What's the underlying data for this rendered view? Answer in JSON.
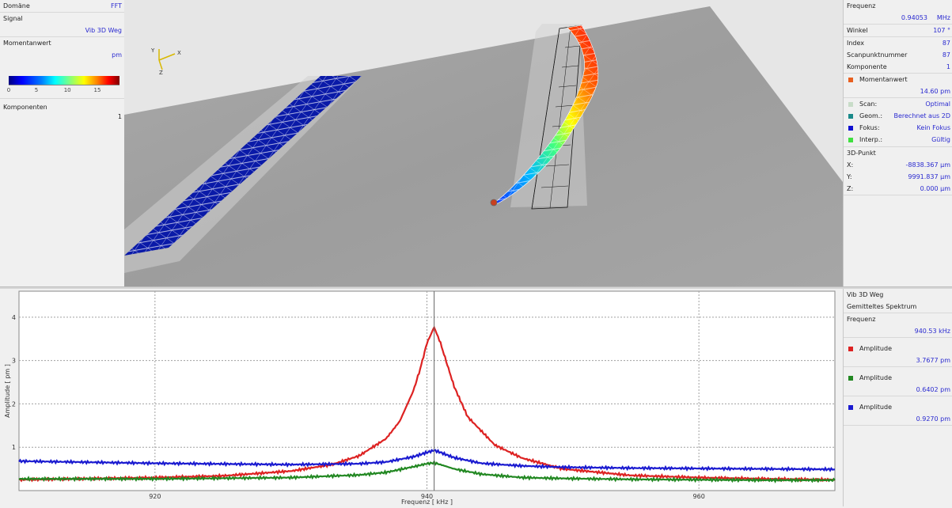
{
  "left_panel": {
    "domain_label": "Domäne",
    "domain_value": "FFT",
    "signal_label": "Signal",
    "signal_value": "Vib 3D Weg",
    "momentanwert_label": "Momentanwert",
    "unit": "pm",
    "colorbar_ticks": [
      "0",
      "5",
      "10",
      "15"
    ],
    "komponenten_label": "Komponenten",
    "komponenten_value": "1"
  },
  "axis_gizmo": {
    "x": "X",
    "y": "Y",
    "z": "Z"
  },
  "right_panel": {
    "frequenz_label": "Frequenz",
    "frequenz_value": "0.94053",
    "frequenz_unit": "MHz",
    "winkel_label": "Winkel",
    "winkel_value": "107 °",
    "index_label": "Index",
    "index_value": "87",
    "scanpunkt_label": "Scanpunktnummer",
    "scanpunkt_value": "87",
    "komponente_label": "Komponente",
    "komponente_value": "1",
    "momentanwert_label": "Momentanwert",
    "momentanwert_value": "14.60 pm",
    "status": [
      {
        "label": "Scan:",
        "value": "Optimal",
        "color": "#c8dcc8"
      },
      {
        "label": "Geom.:",
        "value": "Berechnet aus 2D",
        "color": "#1a8a8a"
      },
      {
        "label": "Fokus:",
        "value": "Kein Fokus",
        "color": "#1010d0"
      },
      {
        "label": "Interp.:",
        "value": "Gültig",
        "color": "#40e040"
      }
    ],
    "point_label": "3D-Punkt",
    "coords": [
      {
        "label": "X:",
        "value": "-8838.367 µm"
      },
      {
        "label": "Y:",
        "value": "9991.837 µm"
      },
      {
        "label": "Z:",
        "value": "0.000 µm"
      }
    ]
  },
  "legend_panel": {
    "signal": "Vib 3D Weg",
    "mode": "Gemitteltes Spektrum",
    "frequenz_label": "Frequenz",
    "frequenz_value": "940.53 kHz",
    "amplitudes": [
      {
        "label": "Amplitude",
        "value": "3.7677 pm",
        "color": "#dd2222"
      },
      {
        "label": "Amplitude",
        "value": "0.6402 pm",
        "color": "#228822"
      },
      {
        "label": "Amplitude",
        "value": "0.9270 pm",
        "color": "#1a1ad0"
      }
    ]
  },
  "chart_data": {
    "type": "line",
    "xlabel": "Frequenz [ kHz ]",
    "ylabel": "Amplitude [ pm ]",
    "xlim": [
      910,
      970
    ],
    "ylim": [
      0,
      4.6
    ],
    "x_ticks": [
      920,
      940,
      960
    ],
    "y_ticks": [
      1,
      2,
      3,
      4
    ],
    "grid": true,
    "cursor_x": 940.53,
    "series": [
      {
        "color": "#dd2222",
        "x": [
          910,
          920,
          925,
          930,
          933,
          935,
          937,
          938,
          939,
          939.5,
          940,
          940.53,
          941,
          941.5,
          942,
          943,
          945,
          947,
          950,
          955,
          960,
          965,
          970
        ],
        "y": [
          0.25,
          0.3,
          0.34,
          0.45,
          0.6,
          0.8,
          1.2,
          1.6,
          2.3,
          2.8,
          3.4,
          3.77,
          3.4,
          2.9,
          2.4,
          1.7,
          1.05,
          0.75,
          0.5,
          0.35,
          0.3,
          0.27,
          0.25
        ]
      },
      {
        "color": "#228822",
        "x": [
          910,
          920,
          930,
          935,
          937,
          939,
          940,
          940.53,
          941,
          942,
          944,
          947,
          950,
          955,
          960,
          965,
          970
        ],
        "y": [
          0.27,
          0.27,
          0.3,
          0.36,
          0.42,
          0.55,
          0.62,
          0.64,
          0.6,
          0.5,
          0.38,
          0.3,
          0.28,
          0.26,
          0.25,
          0.24,
          0.24
        ]
      },
      {
        "color": "#1a1ad0",
        "x": [
          910,
          920,
          930,
          935,
          937,
          939,
          940,
          940.53,
          941,
          942,
          944,
          947,
          950,
          955,
          960,
          965,
          970
        ],
        "y": [
          0.68,
          0.63,
          0.6,
          0.62,
          0.66,
          0.78,
          0.88,
          0.93,
          0.88,
          0.76,
          0.63,
          0.57,
          0.54,
          0.52,
          0.51,
          0.5,
          0.49
        ]
      }
    ]
  }
}
